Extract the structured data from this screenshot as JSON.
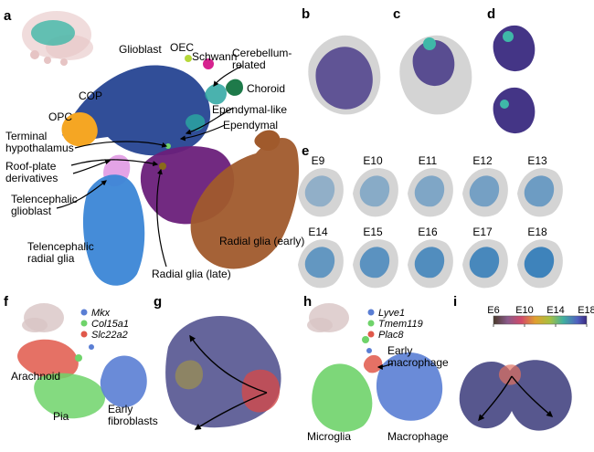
{
  "panels": {
    "a": {
      "letter": "a",
      "clusters": {
        "glioblast": "Glioblast",
        "oec": "OEC",
        "schwann": "Schwann",
        "cerebellum": "Cerebellum-\nrelated",
        "choroid": "Choroid",
        "cop": "COP",
        "opc": "OPC",
        "ependymal_like": "Ependymal-like",
        "ependymal": "Ependymal",
        "terminal_hypo": "Terminal\nhypothalamus",
        "roof_plate": "Roof-plate\nderivatives",
        "tel_glioblast": "Telencephalic\nglioblast",
        "tel_radial": "Telencephalic\nradial glia",
        "radial_early": "Radial glia (early)",
        "radial_late": "Radial glia (late)"
      }
    },
    "b": {
      "letter": "b"
    },
    "c": {
      "letter": "c"
    },
    "d": {
      "letter": "d"
    },
    "e": {
      "letter": "e",
      "stages": [
        "E9",
        "E10",
        "E11",
        "E12",
        "E13",
        "E14",
        "E15",
        "E16",
        "E17",
        "E18"
      ]
    },
    "f": {
      "letter": "f",
      "legend": [
        "Mkx",
        "Col15a1",
        "Slc22a2"
      ],
      "clusters": {
        "arachnoid": "Arachnoid",
        "pia": "Pia",
        "early_fibro": "Early\nfibroblasts"
      }
    },
    "g": {
      "letter": "g"
    },
    "h": {
      "letter": "h",
      "legend": [
        "Lyve1",
        "Tmem119",
        "Plac8"
      ],
      "clusters": {
        "early_macro": "Early\nmacrophage",
        "microglia": "Microglia",
        "macrophage": "Macrophage"
      }
    },
    "i": {
      "letter": "i",
      "colorbar_ticks": [
        "E6",
        "E10",
        "E14",
        "E18"
      ]
    }
  },
  "colors": {
    "glioblast": "#1f3f8f",
    "opc": "#f5a623",
    "cop": "#f5a623",
    "tel_radial": "#3b86d6",
    "tel_glioblast": "#e3a3e6",
    "radial_early": "#a05a2c",
    "radial_late": "#6a1f7a",
    "choroid": "#1e7a4a",
    "schwann": "#d6238f",
    "oec": "#b6d83a",
    "ependymal": "#2aa5a0",
    "gray": "#cfcfcf",
    "heat": "#3a2a80",
    "stage_blue": "#2e7ab8",
    "mkx": "#5a7ed4",
    "col15a1": "#6fd36a",
    "slc22a2": "#e0584a",
    "lyve1": "#5a7ed4",
    "tmem119": "#6fd36a",
    "plac8": "#e0584a"
  }
}
